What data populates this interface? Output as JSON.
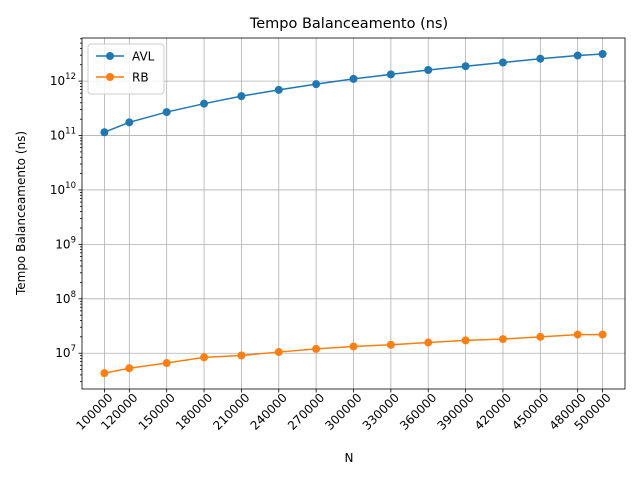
{
  "chart_data": {
    "type": "line",
    "title": "Tempo Balanceamento (ns)",
    "xlabel": "N",
    "ylabel": "Tempo Balanceamento (ns)",
    "yscale": "log",
    "ylim": [
      2200000.0,
      6200000000000.0
    ],
    "grid": true,
    "legend_position": "top-left",
    "x": [
      100000,
      120000,
      150000,
      180000,
      210000,
      240000,
      270000,
      300000,
      330000,
      360000,
      390000,
      420000,
      450000,
      480000,
      500000
    ],
    "x_tick_labels": [
      "100000",
      "120000",
      "150000",
      "180000",
      "210000",
      "240000",
      "270000",
      "300000",
      "330000",
      "360000",
      "390000",
      "420000",
      "450000",
      "480000",
      "500000"
    ],
    "y_ticks": [
      {
        "value": 10000000.0,
        "base": "10",
        "exp": "7"
      },
      {
        "value": 100000000.0,
        "base": "10",
        "exp": "8"
      },
      {
        "value": 1000000000.0,
        "base": "10",
        "exp": "9"
      },
      {
        "value": 10000000000.0,
        "base": "10",
        "exp": "10"
      },
      {
        "value": 100000000000.0,
        "base": "10",
        "exp": "11"
      },
      {
        "value": 1000000000000.0,
        "base": "10",
        "exp": "12"
      }
    ],
    "series": [
      {
        "name": "AVL",
        "color": "#1f77b4",
        "values": [
          115000000000.0,
          175000000000.0,
          270000000000.0,
          385000000000.0,
          530000000000.0,
          690000000000.0,
          880000000000.0,
          1100000000000.0,
          1330000000000.0,
          1600000000000.0,
          1880000000000.0,
          2200000000000.0,
          2580000000000.0,
          2950000000000.0,
          3150000000000.0
        ]
      },
      {
        "name": "RB",
        "color": "#ff7f0e",
        "values": [
          4300000.0,
          5300000.0,
          6600000.0,
          8400000.0,
          9100000.0,
          10500000.0,
          12000000.0,
          13300000.0,
          14300000.0,
          15700000.0,
          17200000.0,
          18200000.0,
          20000000.0,
          22000000.0,
          22000000.0
        ]
      }
    ]
  }
}
